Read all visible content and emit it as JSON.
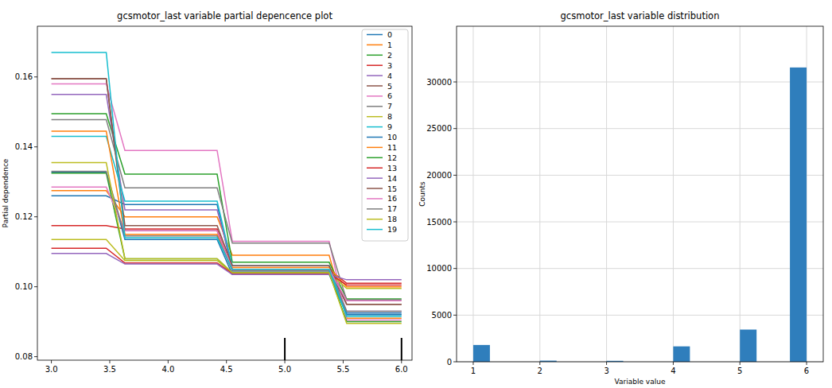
{
  "chart_data": [
    {
      "type": "line",
      "title": "gcsmotor_last variable partial depencence plot",
      "y_label": "Partial dependence",
      "x": [
        3.0,
        3.47,
        3.63,
        4.42,
        4.55,
        5.38,
        5.53,
        6.0
      ],
      "xlim": [
        2.88,
        6.09
      ],
      "xticks": [
        {
          "value": 3,
          "label": "3.0"
        },
        3.5,
        {
          "value": 4,
          "label": "4.0"
        },
        4.5,
        {
          "value": 5,
          "label": "5.0"
        },
        5.5,
        {
          "value": 6,
          "label": "6.0"
        }
      ],
      "ylim": [
        0.079,
        0.1745
      ],
      "yticks": [
        0.08,
        {
          "value": 0.1,
          "label": "0.10"
        },
        0.12,
        0.14,
        0.16
      ],
      "grid": false,
      "legend": "upper right",
      "rug": [
        5.0,
        6.0
      ],
      "series": [
        {
          "name": "0",
          "color": "#1f77b4",
          "values": [
            0.126,
            0.126,
            0.1235,
            0.1235,
            0.1045,
            0.1045,
            0.0925,
            0.0925
          ]
        },
        {
          "name": "1",
          "color": "#ff7f0e",
          "values": [
            0.1275,
            0.1275,
            0.12,
            0.12,
            0.109,
            0.109,
            0.091,
            0.091
          ]
        },
        {
          "name": "2",
          "color": "#2ca02c",
          "values": [
            0.1495,
            0.1495,
            0.1322,
            0.1322,
            0.107,
            0.107,
            0.0965,
            0.0965
          ]
        },
        {
          "name": "3",
          "color": "#d62728",
          "values": [
            0.1175,
            0.1175,
            0.1165,
            0.1165,
            0.105,
            0.105,
            0.101,
            0.101
          ]
        },
        {
          "name": "4",
          "color": "#9467bd",
          "values": [
            0.155,
            0.155,
            0.122,
            0.122,
            0.106,
            0.106,
            0.093,
            0.093
          ]
        },
        {
          "name": "5",
          "color": "#8c564b",
          "values": [
            0.1595,
            0.1595,
            0.116,
            0.116,
            0.105,
            0.105,
            0.095,
            0.095
          ]
        },
        {
          "name": "6",
          "color": "#e377c2",
          "values": [
            0.158,
            0.158,
            0.139,
            0.139,
            0.113,
            0.113,
            0.0905,
            0.0905
          ]
        },
        {
          "name": "7",
          "color": "#7f7f7f",
          "values": [
            0.1478,
            0.1478,
            0.1283,
            0.1283,
            0.1125,
            0.1125,
            0.0962,
            0.0962
          ]
        },
        {
          "name": "8",
          "color": "#bcbd22",
          "values": [
            0.1135,
            0.1135,
            0.1075,
            0.1075,
            0.104,
            0.104,
            0.0995,
            0.0995
          ]
        },
        {
          "name": "9",
          "color": "#17becf",
          "values": [
            0.143,
            0.143,
            0.1245,
            0.1245,
            0.106,
            0.106,
            0.092,
            0.092
          ]
        },
        {
          "name": "10",
          "color": "#1f77b4",
          "values": [
            0.1328,
            0.1328,
            0.1135,
            0.1135,
            0.1035,
            0.1035,
            0.092,
            0.092
          ]
        },
        {
          "name": "11",
          "color": "#ff7f0e",
          "values": [
            0.1445,
            0.1445,
            0.115,
            0.115,
            0.1055,
            0.1055,
            0.1,
            0.1
          ]
        },
        {
          "name": "12",
          "color": "#2ca02c",
          "values": [
            0.1325,
            0.1325,
            0.108,
            0.108,
            0.104,
            0.104,
            0.09,
            0.09
          ]
        },
        {
          "name": "13",
          "color": "#d62728",
          "values": [
            0.111,
            0.111,
            0.1068,
            0.1068,
            0.1038,
            0.1038,
            0.1005,
            0.1005
          ]
        },
        {
          "name": "14",
          "color": "#9467bd",
          "values": [
            0.1095,
            0.1095,
            0.1065,
            0.1065,
            0.1035,
            0.1035,
            0.102,
            0.102
          ]
        },
        {
          "name": "15",
          "color": "#8c564b",
          "values": [
            0.1595,
            0.1595,
            0.1175,
            0.1175,
            0.106,
            0.106,
            0.095,
            0.095
          ]
        },
        {
          "name": "16",
          "color": "#e377c2",
          "values": [
            0.1285,
            0.1285,
            0.116,
            0.116,
            0.105,
            0.105,
            0.096,
            0.096
          ]
        },
        {
          "name": "17",
          "color": "#7f7f7f",
          "values": [
            0.133,
            0.133,
            0.1145,
            0.1145,
            0.1045,
            0.1045,
            0.093,
            0.093
          ]
        },
        {
          "name": "18",
          "color": "#bcbd22",
          "values": [
            0.1355,
            0.1355,
            0.108,
            0.108,
            0.104,
            0.104,
            0.0895,
            0.0895
          ]
        },
        {
          "name": "19",
          "color": "#17becf",
          "values": [
            0.167,
            0.167,
            0.114,
            0.114,
            0.105,
            0.105,
            0.0915,
            0.0915
          ]
        }
      ]
    },
    {
      "type": "histogram",
      "title": "gcsmotor_last variable distribution",
      "x_label": "Variable value",
      "y_label": "Counts",
      "color": "#2f7ebc",
      "grid": true,
      "bins": [
        1.0,
        1.25,
        1.5,
        1.75,
        2.0,
        2.25,
        2.5,
        2.75,
        3.0,
        3.25,
        3.5,
        3.75,
        4.0,
        4.25,
        4.5,
        4.75,
        5.0,
        5.25,
        5.5,
        5.75,
        6.0
      ],
      "values": [
        1800,
        0,
        0,
        0,
        120,
        0,
        0,
        0,
        100,
        0,
        0,
        0,
        1650,
        0,
        0,
        0,
        3450,
        0,
        0,
        31550
      ],
      "xlim": [
        0.75,
        6.25
      ],
      "xticks": [
        1,
        2,
        3,
        4,
        5,
        6
      ],
      "ylim": [
        0,
        35970
      ],
      "yticks": [
        0,
        5000,
        10000,
        15000,
        20000,
        25000,
        30000
      ]
    }
  ]
}
